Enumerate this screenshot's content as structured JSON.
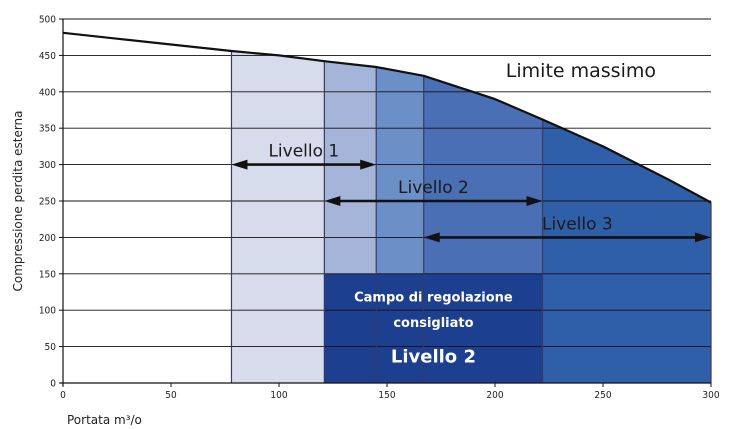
{
  "chart_data": {
    "type": "area",
    "xlabel": "Portata m³/o",
    "ylabel": "Compressione perdita esterna",
    "xlim": [
      0,
      300
    ],
    "ylim": [
      0,
      500
    ],
    "xticks": [
      0,
      50,
      100,
      150,
      200,
      250,
      300
    ],
    "yticks": [
      0,
      50,
      100,
      150,
      200,
      250,
      300,
      350,
      400,
      450,
      500
    ],
    "grid": "horizontal",
    "limit_curve": {
      "name": "Limite massimo",
      "x": [
        0,
        25,
        50,
        78,
        100,
        121,
        145,
        167,
        200,
        222,
        250,
        280,
        300
      ],
      "y": [
        481,
        473,
        465,
        456,
        450,
        442,
        434,
        422,
        390,
        362,
        325,
        280,
        248
      ]
    },
    "bands": [
      {
        "x_from": 78,
        "x_to": 121,
        "color": "#d6dcec"
      },
      {
        "x_from": 121,
        "x_to": 145,
        "color": "#a5b5d9"
      },
      {
        "x_from": 145,
        "x_to": 167,
        "color": "#6b8fc7"
      },
      {
        "x_from": 167,
        "x_to": 222,
        "color": "#4a6fb5"
      },
      {
        "x_from": 222,
        "x_to": 300,
        "color": "#2f5fa8"
      }
    ],
    "recommended_zone": {
      "x_from": 121,
      "x_to": 222,
      "y_from": 0,
      "y_to": 150,
      "color": "#1d3f8f",
      "label_line1": "Campo di regolazione",
      "label_line2": "consigliato",
      "label_level": "Livello 2"
    },
    "ranges": [
      {
        "name": "Livello 1",
        "x_from": 78,
        "x_to": 145,
        "y": 300
      },
      {
        "name": "Livello 2",
        "x_from": 121,
        "x_to": 222,
        "y": 250
      },
      {
        "name": "Livello 3",
        "x_from": 167,
        "x_to": 300,
        "y": 200
      }
    ],
    "colors": {
      "line": "#111111",
      "grid": "#111111",
      "arrow": "#111111"
    }
  }
}
